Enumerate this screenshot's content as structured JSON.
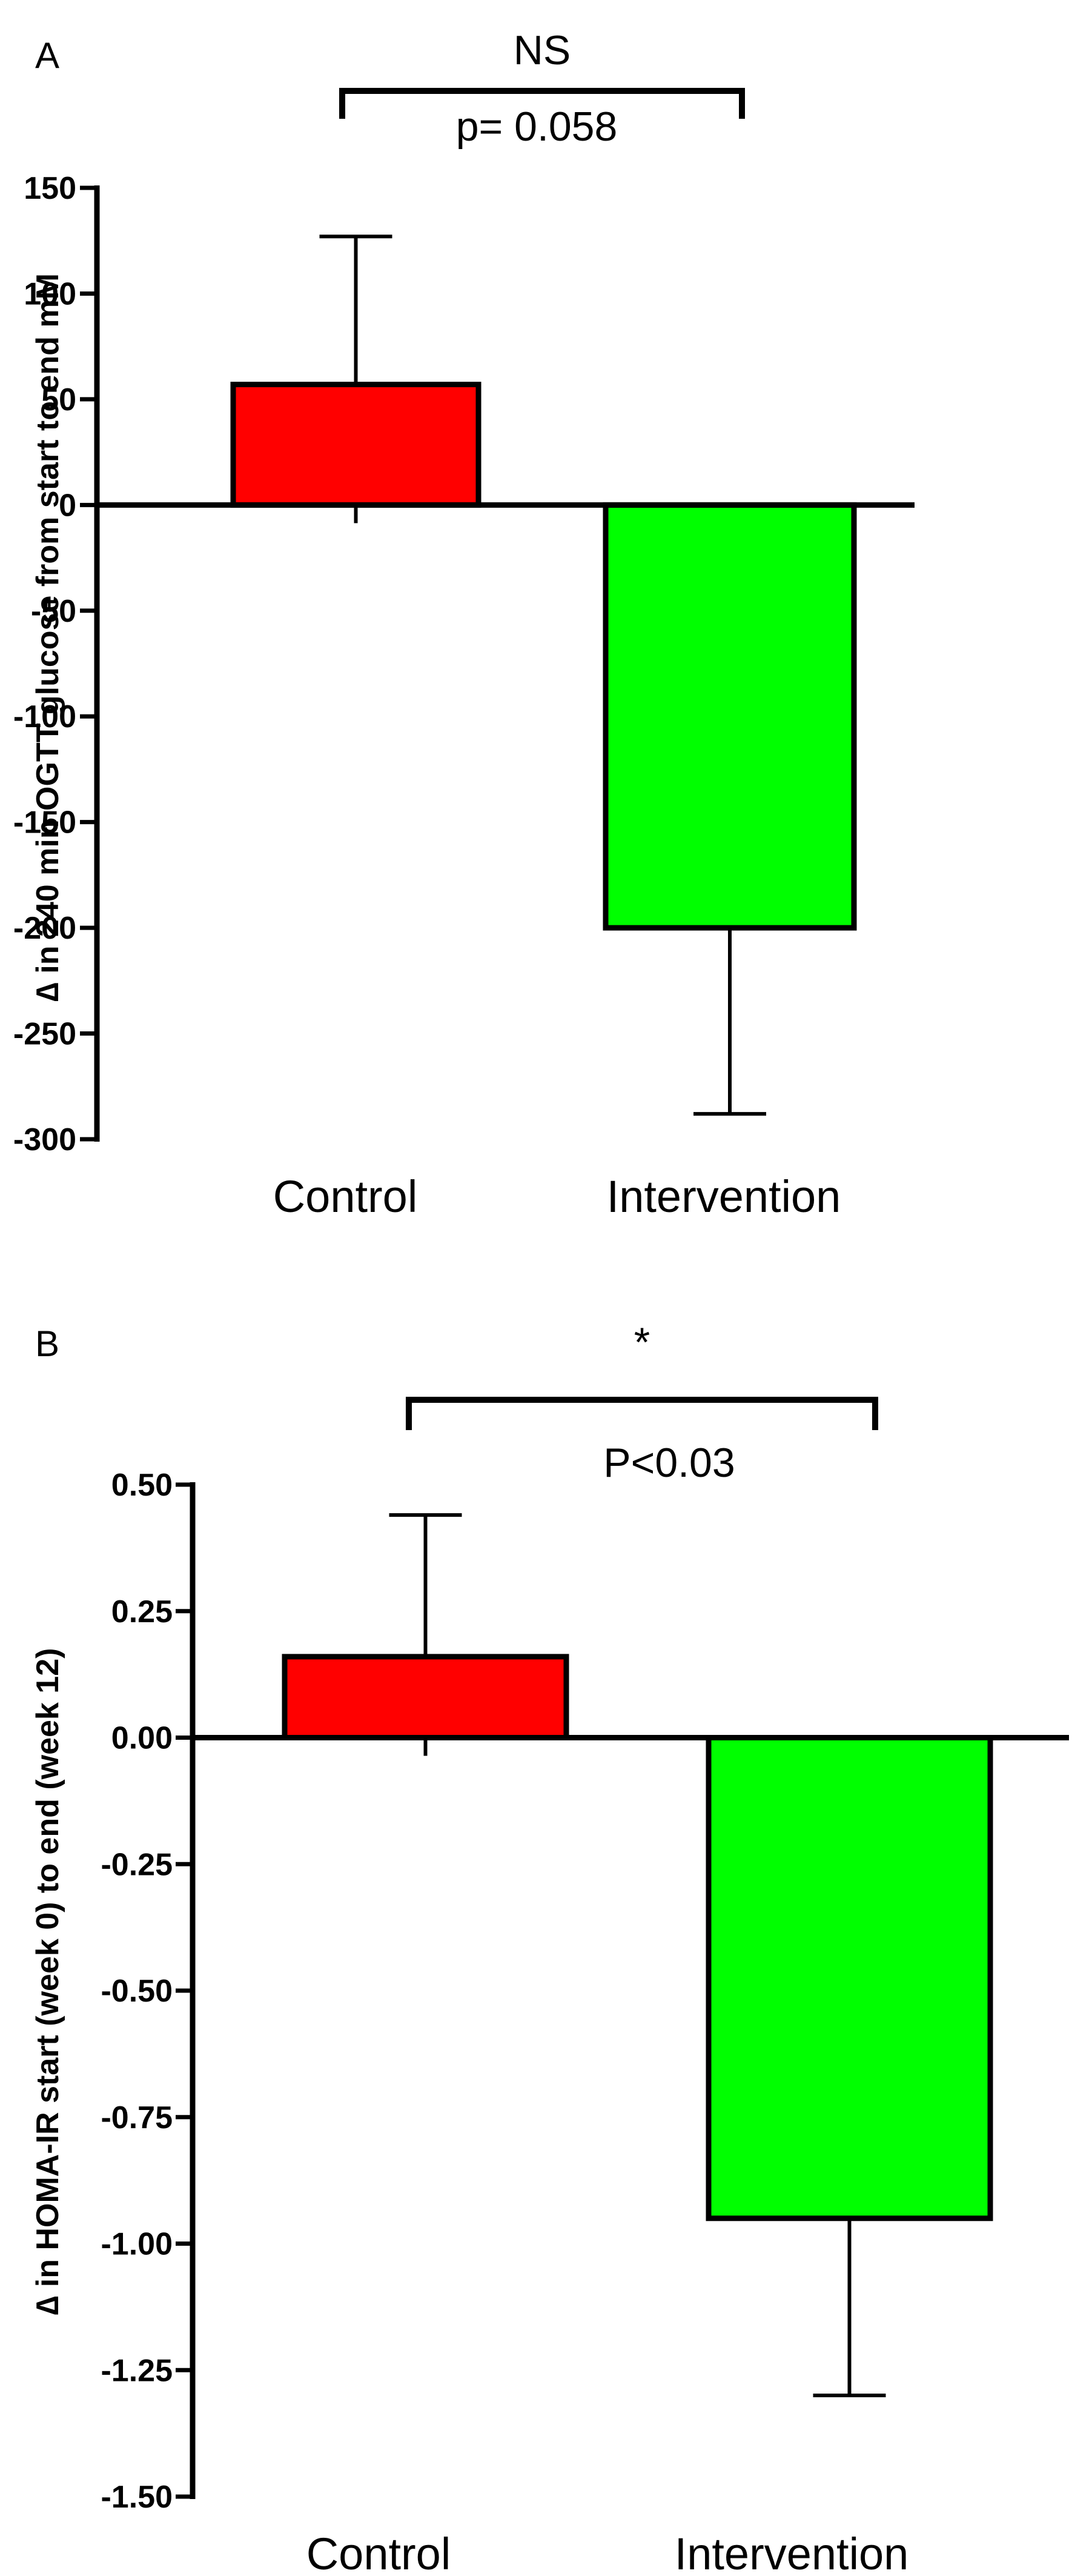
{
  "colors": {
    "control": "#ff0000",
    "intervention": "#00ff00",
    "ink": "#000000"
  },
  "chart_data": [
    {
      "type": "bar",
      "panel": "A",
      "title": "",
      "categories": [
        "Control",
        "Intervention"
      ],
      "values": [
        57,
        -200
      ],
      "error_bars": [
        70,
        88
      ],
      "ylabel": "∆ in 240 min OGTT glucose from start to end mM",
      "xlabel": "",
      "ylim": [
        -300,
        150
      ],
      "yticks": [
        150,
        100,
        50,
        0,
        -50,
        -100,
        -150,
        -200,
        -250,
        -300
      ],
      "ytick_labels": [
        "150",
        "100",
        "50",
        "0",
        "-50",
        "-100",
        "-150",
        "-200",
        "-250",
        "-300"
      ],
      "significance": {
        "label": "NS",
        "p_text": "p= 0.058"
      },
      "grid": false
    },
    {
      "type": "bar",
      "panel": "B",
      "title": "",
      "categories": [
        "Control",
        "Intervention"
      ],
      "values": [
        0.16,
        -0.95
      ],
      "error_bars": [
        0.28,
        0.35
      ],
      "ylabel": "∆ in HOMA-IR start (week 0) to end (week 12)",
      "xlabel": "",
      "ylim": [
        -1.5,
        0.5
      ],
      "yticks": [
        0.5,
        0.25,
        0.0,
        -0.25,
        -0.5,
        -0.75,
        -1.0,
        -1.25,
        -1.5
      ],
      "ytick_labels": [
        "0.50",
        "0.25",
        "0.00",
        "-0.25",
        "-0.50",
        "-0.75",
        "-1.00",
        "-1.25",
        "-1.50"
      ],
      "significance": {
        "label": "*",
        "p_text": "P<0.03"
      },
      "grid": false
    }
  ]
}
